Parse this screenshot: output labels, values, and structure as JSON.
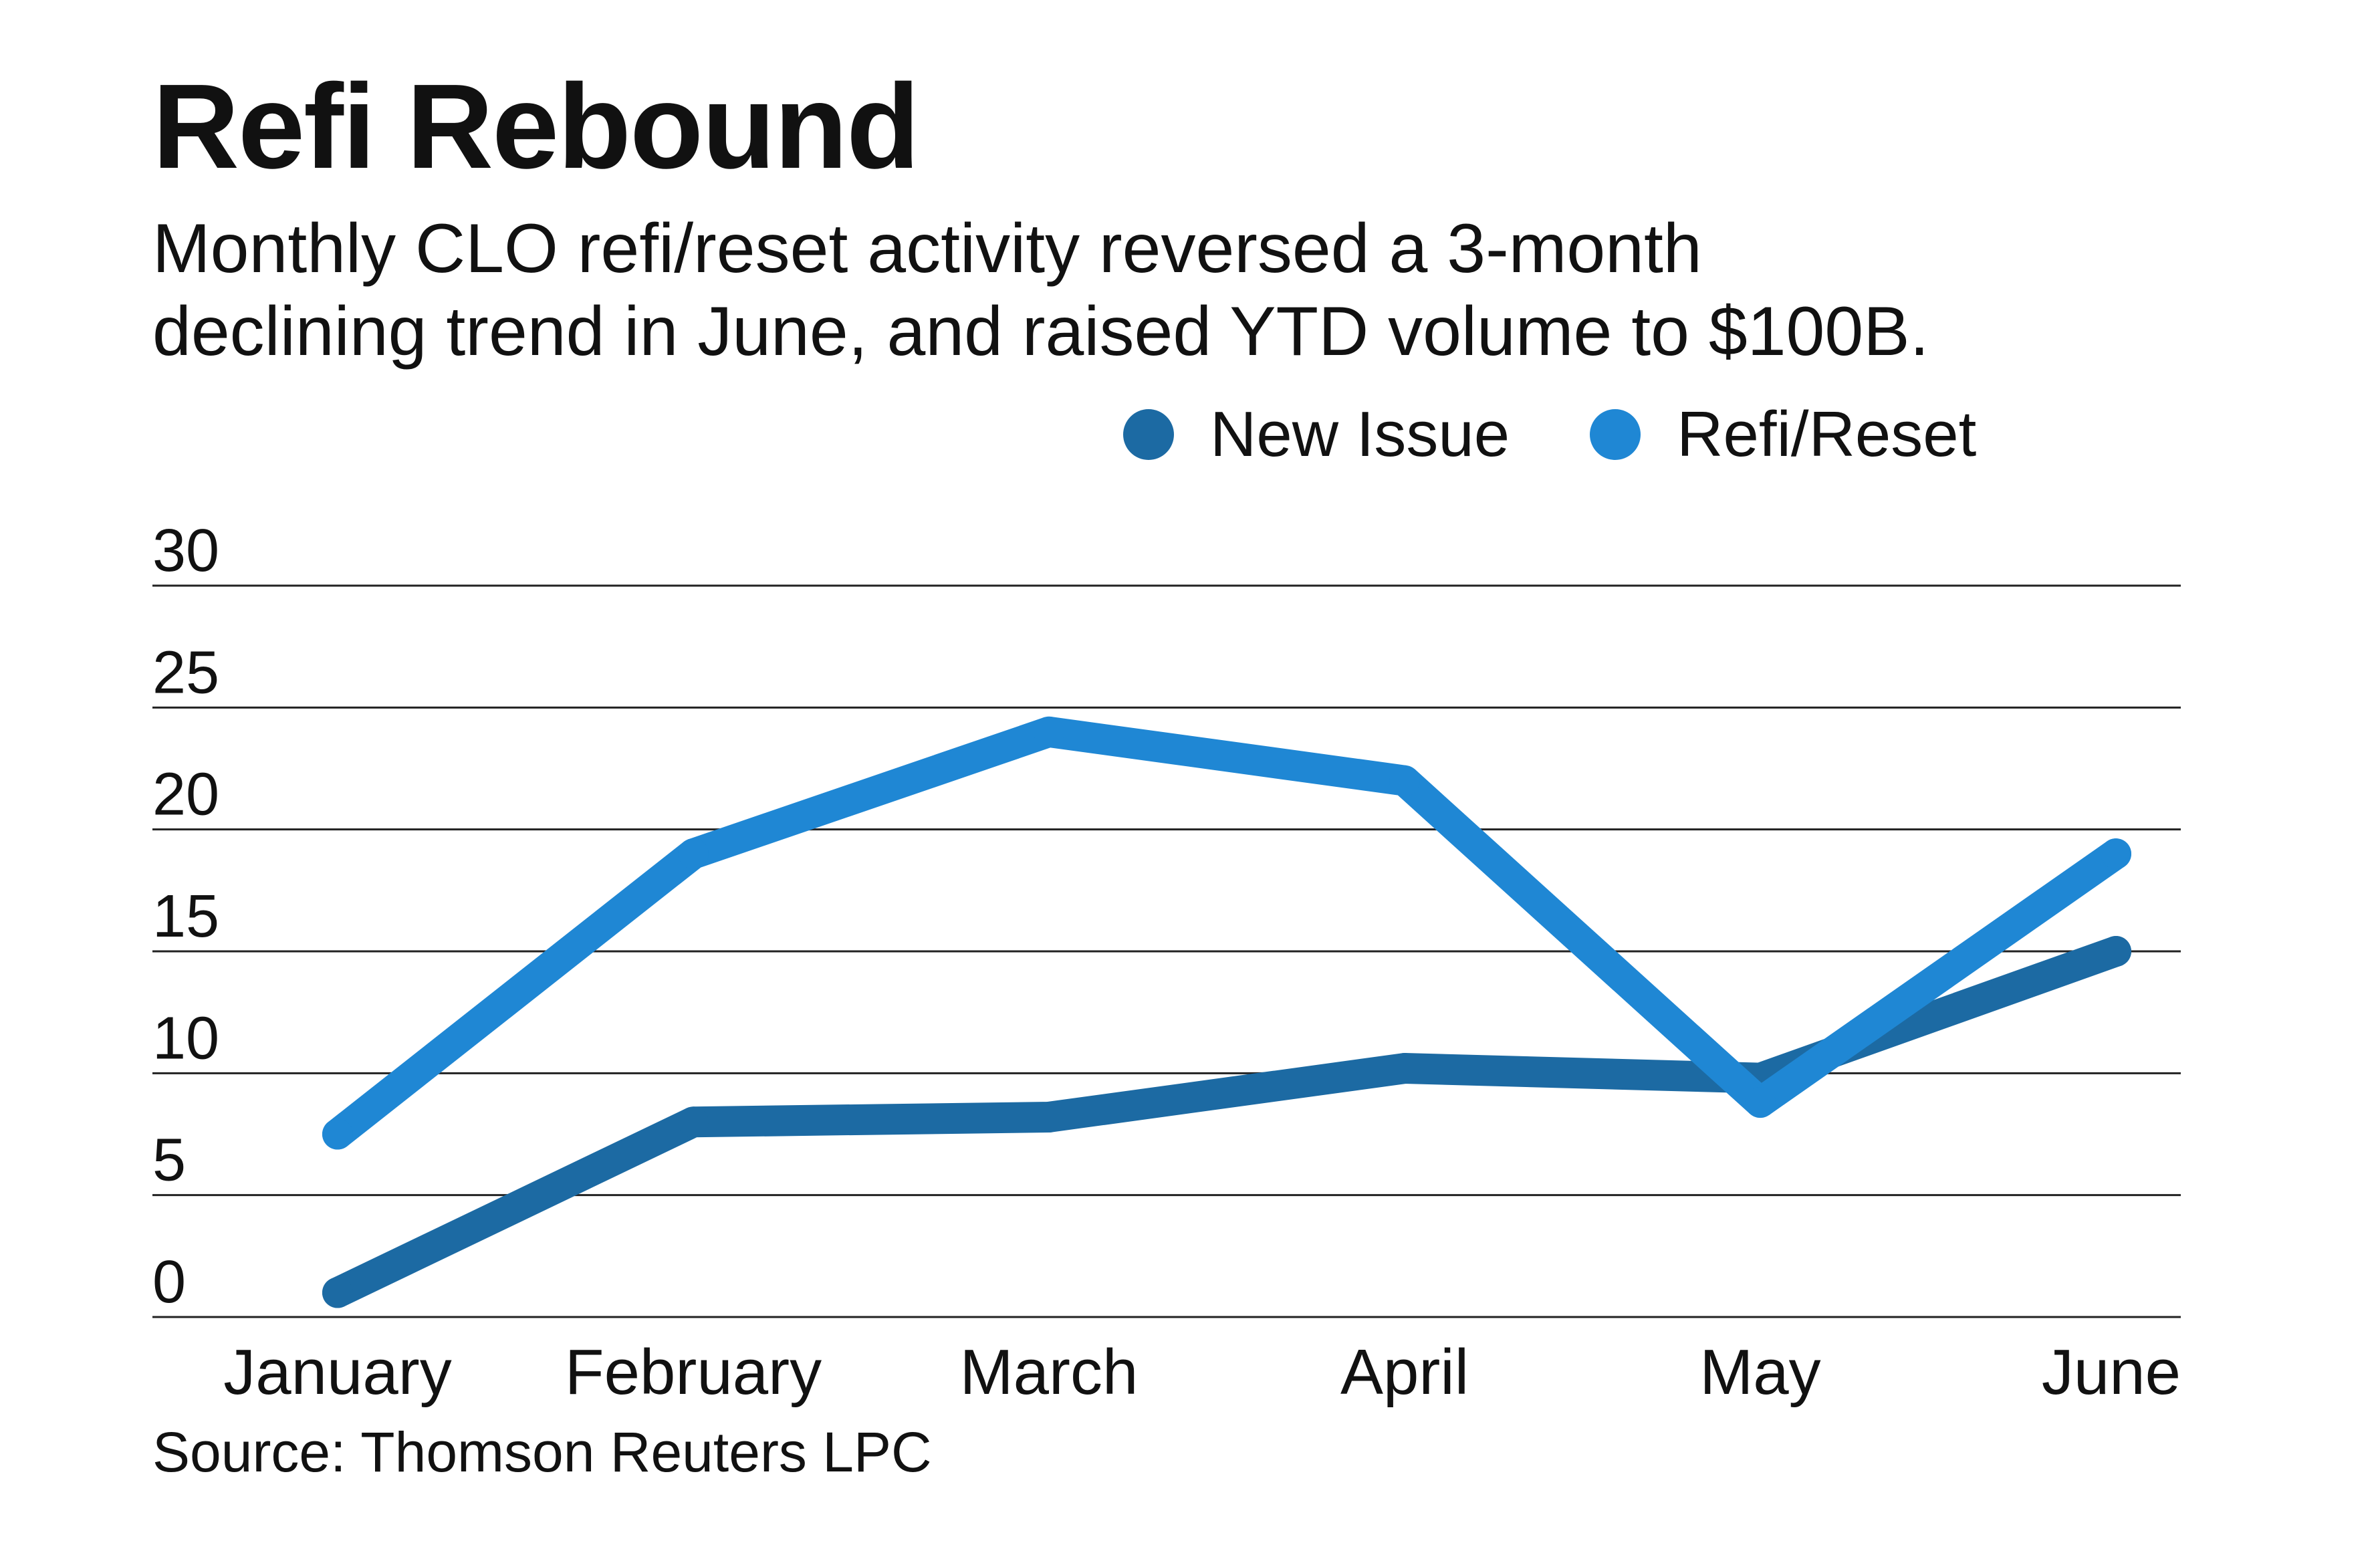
{
  "colors": {
    "new_issue": "#1c6aa3",
    "refi_reset": "#1f87d4",
    "grid": "#222222",
    "text": "#111111"
  },
  "chart_data": {
    "type": "line",
    "title": "Refi Rebound",
    "subtitle_lines": [
      "Monthly CLO refi/reset activity reversed a 3-month",
      "declining trend in June, and raised YTD volume to $100B."
    ],
    "categories": [
      "January",
      "February",
      "March",
      "April",
      "May",
      "June"
    ],
    "series": [
      {
        "name": "New Issue",
        "color": "#1c6aa3",
        "values": [
          1,
          8,
          8.2,
          10.2,
          9.8,
          15
        ]
      },
      {
        "name": "Refi/Reset",
        "color": "#1f87d4",
        "values": [
          7.5,
          19,
          24,
          22,
          8.8,
          19
        ]
      }
    ],
    "y_ticks": [
      0,
      5,
      10,
      15,
      20,
      25,
      30
    ],
    "ylim": [
      0,
      30
    ],
    "xlabel": "",
    "ylabel": "",
    "grid": true,
    "legend_position": "top-right",
    "source": "Source: Thomson Reuters LPC"
  }
}
